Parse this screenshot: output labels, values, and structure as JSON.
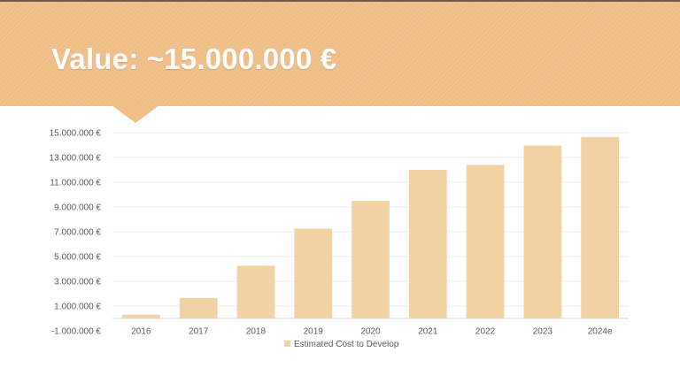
{
  "header": {
    "title": "Value: ~15.000.000 €"
  },
  "colors": {
    "header_band": "#efbe87",
    "bar_fill": "#f2d1a3",
    "grid": "#ececec",
    "axis_text": "#595959"
  },
  "chart_data": {
    "type": "bar",
    "categories": [
      "2016",
      "2017",
      "2018",
      "2019",
      "2020",
      "2021",
      "2022",
      "2023",
      "2024e"
    ],
    "series": [
      {
        "name": "Estimated Cost to Develop",
        "values": [
          300000,
          1650000,
          4250000,
          7250000,
          9500000,
          12000000,
          12400000,
          13950000,
          14650000
        ]
      }
    ],
    "y_ticks": [
      {
        "value": 15000000,
        "label": "15.000.000 €"
      },
      {
        "value": 13000000,
        "label": "13.000.000 €"
      },
      {
        "value": 11000000,
        "label": "11.000.000 €"
      },
      {
        "value": 9000000,
        "label": "9.000.000 €"
      },
      {
        "value": 7000000,
        "label": "7.000.000 €"
      },
      {
        "value": 5000000,
        "label": "5.000.000 €"
      },
      {
        "value": 3000000,
        "label": "3.000.000 €"
      },
      {
        "value": 1000000,
        "label": "1.000.000 €"
      },
      {
        "value": -1000000,
        "label": "-1.000.000 €"
      }
    ],
    "baseline": 0,
    "ylim": [
      -1000000,
      15000000
    ],
    "grid": true,
    "legend_position": "bottom",
    "title": "",
    "xlabel": "",
    "ylabel": ""
  }
}
